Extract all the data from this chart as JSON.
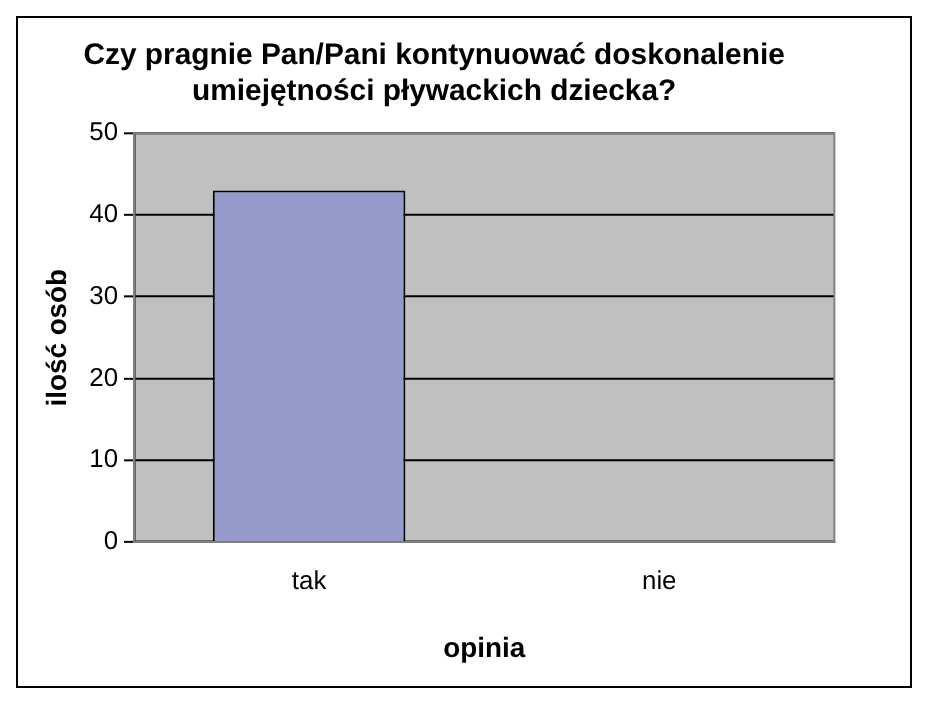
{
  "chart_data": {
    "type": "bar",
    "title": "Czy pragnie Pan/Pani kontynuować doskonalenie umiejętności pływackich dziecka?",
    "xlabel": "opinia",
    "ylabel": "ilość osób",
    "categories": [
      "tak",
      "nie"
    ],
    "values": [
      43,
      0
    ],
    "color": "#959acb",
    "ylim": [
      0,
      50
    ],
    "yticks": [
      0,
      10,
      20,
      30,
      40,
      50
    ],
    "grid": "y"
  }
}
